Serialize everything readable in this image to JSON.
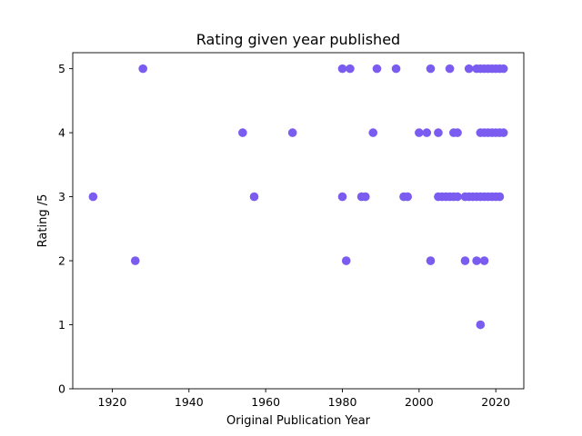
{
  "chart_data": {
    "type": "scatter",
    "title": "Rating given year published",
    "xlabel": "Original Publication Year",
    "ylabel": "Rating /5",
    "xlim": [
      1909.7,
      2027.3
    ],
    "ylim": [
      0,
      5.25
    ],
    "xticks": [
      1920,
      1940,
      1960,
      1980,
      2000,
      2020
    ],
    "yticks": [
      0,
      1,
      2,
      3,
      4,
      5
    ],
    "grid": false,
    "marker_color": "#7b5cf0",
    "points": [
      {
        "x": 1915,
        "y": 3
      },
      {
        "x": 1926,
        "y": 2
      },
      {
        "x": 1928,
        "y": 5
      },
      {
        "x": 1954,
        "y": 4
      },
      {
        "x": 1957,
        "y": 3
      },
      {
        "x": 1967,
        "y": 4
      },
      {
        "x": 1980,
        "y": 5
      },
      {
        "x": 1980,
        "y": 3
      },
      {
        "x": 1981,
        "y": 2
      },
      {
        "x": 1982,
        "y": 5
      },
      {
        "x": 1985,
        "y": 3
      },
      {
        "x": 1986,
        "y": 3
      },
      {
        "x": 1988,
        "y": 4
      },
      {
        "x": 1989,
        "y": 5
      },
      {
        "x": 1994,
        "y": 5
      },
      {
        "x": 1996,
        "y": 3
      },
      {
        "x": 1997,
        "y": 3
      },
      {
        "x": 2000,
        "y": 4
      },
      {
        "x": 2002,
        "y": 4
      },
      {
        "x": 2003,
        "y": 5
      },
      {
        "x": 2003,
        "y": 2
      },
      {
        "x": 2005,
        "y": 4
      },
      {
        "x": 2005,
        "y": 3
      },
      {
        "x": 2006,
        "y": 3
      },
      {
        "x": 2007,
        "y": 3
      },
      {
        "x": 2008,
        "y": 5
      },
      {
        "x": 2008,
        "y": 3
      },
      {
        "x": 2009,
        "y": 4
      },
      {
        "x": 2009,
        "y": 3
      },
      {
        "x": 2010,
        "y": 4
      },
      {
        "x": 2010,
        "y": 3
      },
      {
        "x": 2012,
        "y": 3
      },
      {
        "x": 2012,
        "y": 2
      },
      {
        "x": 2013,
        "y": 5
      },
      {
        "x": 2013,
        "y": 3
      },
      {
        "x": 2014,
        "y": 3
      },
      {
        "x": 2015,
        "y": 5
      },
      {
        "x": 2015,
        "y": 3
      },
      {
        "x": 2015,
        "y": 2
      },
      {
        "x": 2016,
        "y": 5
      },
      {
        "x": 2016,
        "y": 4
      },
      {
        "x": 2016,
        "y": 3
      },
      {
        "x": 2016,
        "y": 1
      },
      {
        "x": 2017,
        "y": 5
      },
      {
        "x": 2017,
        "y": 4
      },
      {
        "x": 2017,
        "y": 3
      },
      {
        "x": 2017,
        "y": 2
      },
      {
        "x": 2018,
        "y": 5
      },
      {
        "x": 2018,
        "y": 4
      },
      {
        "x": 2018,
        "y": 3
      },
      {
        "x": 2019,
        "y": 5
      },
      {
        "x": 2019,
        "y": 4
      },
      {
        "x": 2019,
        "y": 3
      },
      {
        "x": 2020,
        "y": 5
      },
      {
        "x": 2020,
        "y": 4
      },
      {
        "x": 2020,
        "y": 3
      },
      {
        "x": 2021,
        "y": 5
      },
      {
        "x": 2021,
        "y": 4
      },
      {
        "x": 2021,
        "y": 3
      },
      {
        "x": 2022,
        "y": 5
      },
      {
        "x": 2022,
        "y": 4
      }
    ]
  }
}
